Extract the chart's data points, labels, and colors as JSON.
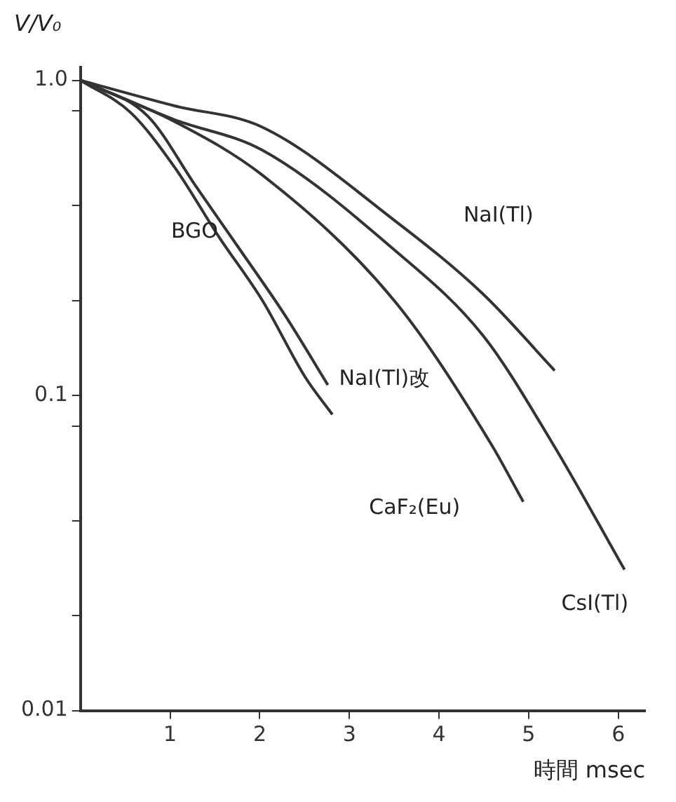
{
  "chart_data": {
    "type": "line",
    "xlabel": "時間 msec",
    "ylabel": "V/V₀",
    "log": "y",
    "xlim": [
      0,
      6.3
    ],
    "ylim": [
      0.01,
      1.1
    ],
    "xticks": [
      1,
      2,
      3,
      4,
      5,
      6
    ],
    "yticks": [
      {
        "value": 0.01,
        "label": "0.01"
      },
      {
        "value": 0.02,
        "label": null
      },
      {
        "value": 0.04,
        "label": null
      },
      {
        "value": 0.08,
        "label": null
      },
      {
        "value": 0.1,
        "label": "0.1"
      },
      {
        "value": 0.2,
        "label": null
      },
      {
        "value": 0.4,
        "label": null
      },
      {
        "value": 0.8,
        "label": null
      },
      {
        "value": 1,
        "label": "1.0"
      }
    ],
    "grid": false,
    "legend": false,
    "marker": "none",
    "line_style": "solid",
    "series": [
      {
        "name": "BGO",
        "color": "#333333",
        "x": [
          0,
          0.56,
          1.05,
          1.54,
          2.03,
          2.51,
          2.81
        ],
        "values": [
          1,
          0.79,
          0.53,
          0.32,
          0.2,
          0.114,
          0.087
        ]
      },
      {
        "name": "NaI(Tl)改",
        "color": "#333333",
        "x": [
          0,
          0.75,
          1.29,
          1.78,
          2.28,
          2.76
        ],
        "values": [
          1,
          0.77,
          0.46,
          0.29,
          0.18,
          0.108
        ]
      },
      {
        "name": "CaF₂(Eu)",
        "color": "#333333",
        "x": [
          0,
          1.05,
          2.03,
          3.5,
          4.57,
          4.94
        ],
        "values": [
          1,
          0.74,
          0.5,
          0.2,
          0.071,
          0.046
        ]
      },
      {
        "name": "CsI(Tl)",
        "color": "#333333",
        "x": [
          0,
          1.05,
          2.03,
          3.5,
          4.49,
          5.26,
          6.07
        ],
        "values": [
          1,
          0.75,
          0.6,
          0.29,
          0.155,
          0.071,
          0.028
        ]
      },
      {
        "name": "NaI(Tl)",
        "color": "#333333",
        "x": [
          0,
          1.05,
          2.03,
          3.5,
          4.49,
          5.29
        ],
        "values": [
          1,
          0.83,
          0.71,
          0.36,
          0.21,
          0.12
        ]
      }
    ]
  }
}
